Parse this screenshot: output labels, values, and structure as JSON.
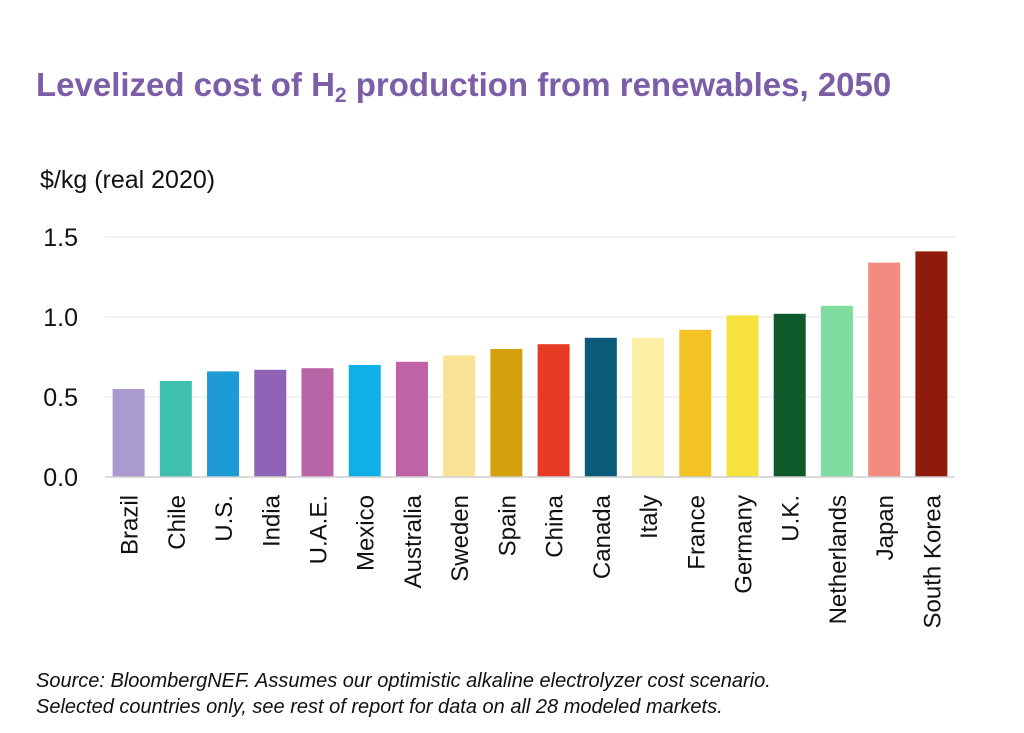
{
  "header": {
    "title_prefix": "Levelized cost of H",
    "title_sub": "2",
    "title_suffix": " production from renewables, 2050",
    "unit_label": "$/kg (real 2020)"
  },
  "footer": {
    "source_line1": "Source: BloombergNEF. Assumes our optimistic alkaline electrolyzer cost scenario.",
    "source_line2": "Selected countries only, see rest of report for data on all 28 modeled markets."
  },
  "chart_data": {
    "type": "bar",
    "title": "Levelized cost of H2 production from renewables, 2050",
    "ylabel": "$/kg (real 2020)",
    "xlabel": "",
    "ylim": [
      0,
      1.5
    ],
    "yticks": [
      "0.0",
      "0.5",
      "1.0",
      "1.5"
    ],
    "grid": true,
    "categories": [
      "Brazil",
      "Chile",
      "U.S.",
      "India",
      "U.A.E.",
      "Mexico",
      "Australia",
      "Sweden",
      "Spain",
      "China",
      "Canada",
      "Italy",
      "France",
      "Germany",
      "U.K.",
      "Netherlands",
      "Japan",
      "South Korea"
    ],
    "values": [
      0.55,
      0.6,
      0.66,
      0.67,
      0.68,
      0.7,
      0.72,
      0.76,
      0.8,
      0.83,
      0.87,
      0.87,
      0.92,
      1.01,
      1.02,
      1.07,
      1.34,
      1.41
    ],
    "colors": [
      "#a99bce",
      "#3fbfad",
      "#1e9ad6",
      "#8e63b5",
      "#b865a8",
      "#0fb0e6",
      "#c063a6",
      "#fbe396",
      "#d4a00e",
      "#e63a25",
      "#0b5a78",
      "#fdf0a6",
      "#f5c225",
      "#f7e13d",
      "#0e5a2a",
      "#7fdca0",
      "#f38b80",
      "#8f1b0c"
    ]
  }
}
